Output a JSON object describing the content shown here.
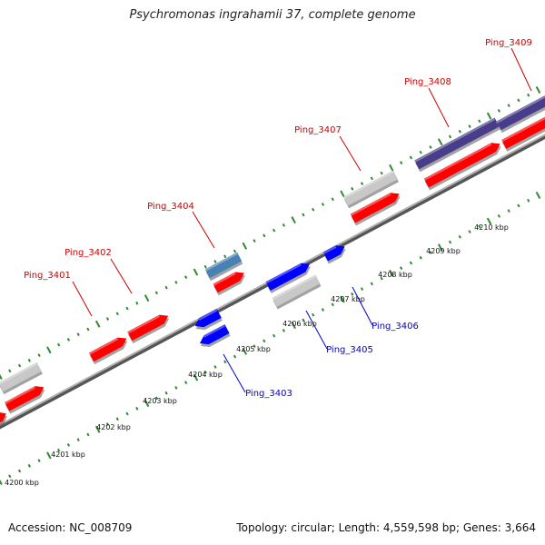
{
  "title": "Psychromonas ingrahamii 37, complete genome",
  "footer": {
    "accession": "Accession: NC_008709",
    "summary": "Topology: circular; Length: 4,559,598 bp; Genes: 3,664"
  },
  "colors": {
    "red_gene": "#ff0000",
    "blue_gene": "#0000ff",
    "gray_gene": "#c8c8c8",
    "steel_gene": "#4682b4",
    "purple_gene": "#483d8b",
    "label_red": "#cc0000",
    "label_blue": "#0000cc",
    "tick_green": "#2e8b2e",
    "backbone": "#888888"
  },
  "axis": {
    "unit": "kbp",
    "labels": [
      "4200 kbp",
      "4201 kbp",
      "4202 kbp",
      "4203 kbp",
      "4204 kbp",
      "4205 kbp",
      "4206 kbp",
      "4207 kbp",
      "4208 kbp",
      "4209 kbp",
      "4210 kbp"
    ]
  },
  "gene_labels": {
    "top": [
      "Ping_3401",
      "Ping_3402",
      "Ping_3404",
      "Ping_3407",
      "Ping_3408",
      "Ping_3409"
    ],
    "bottom": [
      "Ping_3403",
      "Ping_3405",
      "Ping_3406"
    ]
  }
}
